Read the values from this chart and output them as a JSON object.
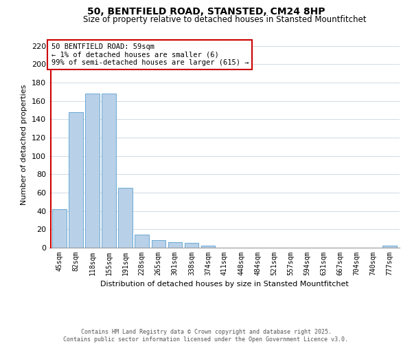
{
  "title": "50, BENTFIELD ROAD, STANSTED, CM24 8HP",
  "subtitle": "Size of property relative to detached houses in Stansted Mountfitchet",
  "xlabel": "Distribution of detached houses by size in Stansted Mountfitchet",
  "ylabel": "Number of detached properties",
  "bar_color": "#b8d0e8",
  "bar_edge_color": "#6aaad4",
  "annotation_line_color": "#cc0000",
  "background_color": "#ffffff",
  "grid_color": "#c8d4e0",
  "footer_line1": "Contains HM Land Registry data © Crown copyright and database right 2025.",
  "footer_line2": "Contains public sector information licensed under the Open Government Licence v3.0.",
  "annotation_text": "50 BENTFIELD ROAD: 59sqm\n← 1% of detached houses are smaller (6)\n99% of semi-detached houses are larger (615) →",
  "bins": [
    "45sqm",
    "82sqm",
    "118sqm",
    "155sqm",
    "191sqm",
    "228sqm",
    "265sqm",
    "301sqm",
    "338sqm",
    "374sqm",
    "411sqm",
    "448sqm",
    "484sqm",
    "521sqm",
    "557sqm",
    "594sqm",
    "631sqm",
    "667sqm",
    "704sqm",
    "740sqm",
    "777sqm"
  ],
  "values": [
    42,
    148,
    168,
    168,
    65,
    14,
    8,
    6,
    5,
    2,
    0,
    0,
    0,
    0,
    0,
    0,
    0,
    0,
    0,
    0,
    2
  ],
  "ylim": [
    0,
    225
  ],
  "yticks": [
    0,
    20,
    40,
    60,
    80,
    100,
    120,
    140,
    160,
    180,
    200,
    220
  ],
  "figsize": [
    6.0,
    5.0
  ],
  "dpi": 100
}
